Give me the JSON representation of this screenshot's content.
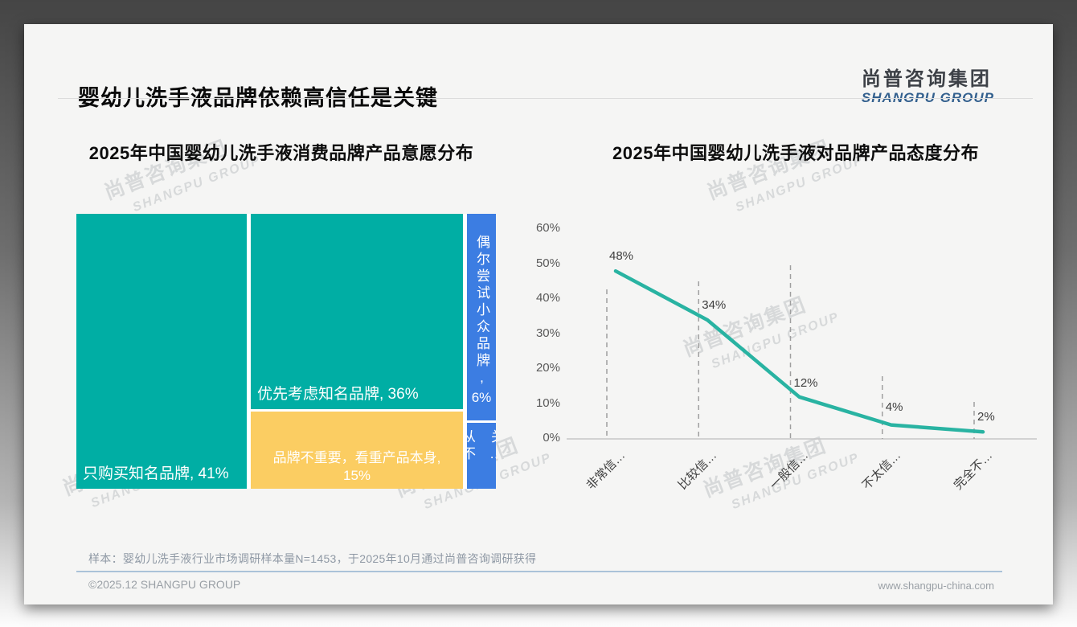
{
  "header": {
    "title": "婴幼儿洗手液品牌依赖高信任是关键",
    "logo_cn": "尚普咨询集团",
    "logo_en": "SHANGPU GROUP"
  },
  "watermark": {
    "line1": "尚普咨询集团",
    "line2": "SHANGPU GROUP"
  },
  "footer": {
    "sample_note": "样本：婴幼儿洗手液行业市场调研样本量N=1453，于2025年10月通过尚普咨询调研获得",
    "copyright": "©2025.12 SHANGPU GROUP",
    "website": "www.shangpu-china.com"
  },
  "colors": {
    "teal": "#00aea4",
    "yellow": "#fbcd62",
    "blue": "#3c7de2",
    "line": "#29b3a2",
    "logo_blue": "#33608e"
  },
  "chart_data": [
    {
      "type": "treemap",
      "title": "2025年中国婴幼儿洗手液消费品牌产品意愿分布",
      "items": [
        {
          "label": "只购买知名品牌",
          "value": 41,
          "display": "只购买知名品牌, 41%",
          "color_key": "teal"
        },
        {
          "label": "优先考虑知名品牌",
          "value": 36,
          "display": "优先考虑知名品牌, 36%",
          "color_key": "teal"
        },
        {
          "label": "品牌不重要，看重产品本身",
          "value": 15,
          "display_line1": "品牌不重要，看重产品本身,",
          "display_line2": "15%",
          "color_key": "yellow"
        },
        {
          "label": "偶尔尝试小众品牌",
          "value": 6,
          "display_vertical": "偶尔尝试小众品牌,",
          "display_value": "6%",
          "color_key": "blue"
        },
        {
          "label": "从不关…",
          "value": 2,
          "display_vertical": "从不关…",
          "color_key": "blue"
        }
      ]
    },
    {
      "type": "line",
      "title": "2025年中国婴幼儿洗手液对品牌产品态度分布",
      "categories": [
        "非常信…",
        "比较信…",
        "一般信…",
        "不太信…",
        "完全不…"
      ],
      "values": [
        48,
        34,
        12,
        4,
        2
      ],
      "data_labels": [
        "48%",
        "34%",
        "12%",
        "4%",
        "2%"
      ],
      "ytick_labels": [
        "60%",
        "50%",
        "40%",
        "30%",
        "20%",
        "10%",
        "0%"
      ],
      "ytick_values": [
        60,
        50,
        40,
        30,
        20,
        10,
        0
      ],
      "ylim": [
        0,
        60
      ],
      "grid": "vertical-dashed-drop-lines",
      "legend": "none"
    }
  ]
}
